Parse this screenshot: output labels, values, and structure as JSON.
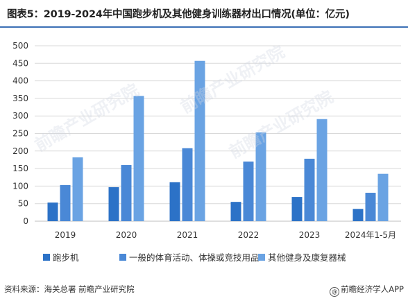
{
  "title": "图表5：2019-2024年中国跑步机及其他健身训练器材出口情况(单位：亿元)",
  "source": "资料来源：海关总署 前瞻产业研究院",
  "brand": "前瞻经济学人APP",
  "watermark": "前瞻产业研究院",
  "colors": {
    "title_rule": "#3a6fb5",
    "series": [
      "#2c72c7",
      "#4a88d6",
      "#6aa3e3"
    ],
    "grid": "#d9d9d9"
  },
  "chart_data": {
    "type": "bar",
    "categories": [
      "2019",
      "2020",
      "2021",
      "2022",
      "2023",
      "2024年1-5月"
    ],
    "series": [
      {
        "name": "跑步机",
        "values": [
          53,
          97,
          111,
          55,
          69,
          35
        ]
      },
      {
        "name": "一般的体育活动、体操或竞技用品",
        "values": [
          103,
          160,
          208,
          170,
          178,
          81
        ]
      },
      {
        "name": "其他健身及康复器械",
        "values": [
          182,
          357,
          457,
          253,
          291,
          135
        ]
      }
    ],
    "yticks": [
      "0",
      "50",
      "100",
      "150",
      "200",
      "250",
      "300",
      "350",
      "400",
      "450",
      "500"
    ],
    "ylim": [
      0,
      500
    ],
    "grid": true,
    "legend_position": "bottom"
  }
}
